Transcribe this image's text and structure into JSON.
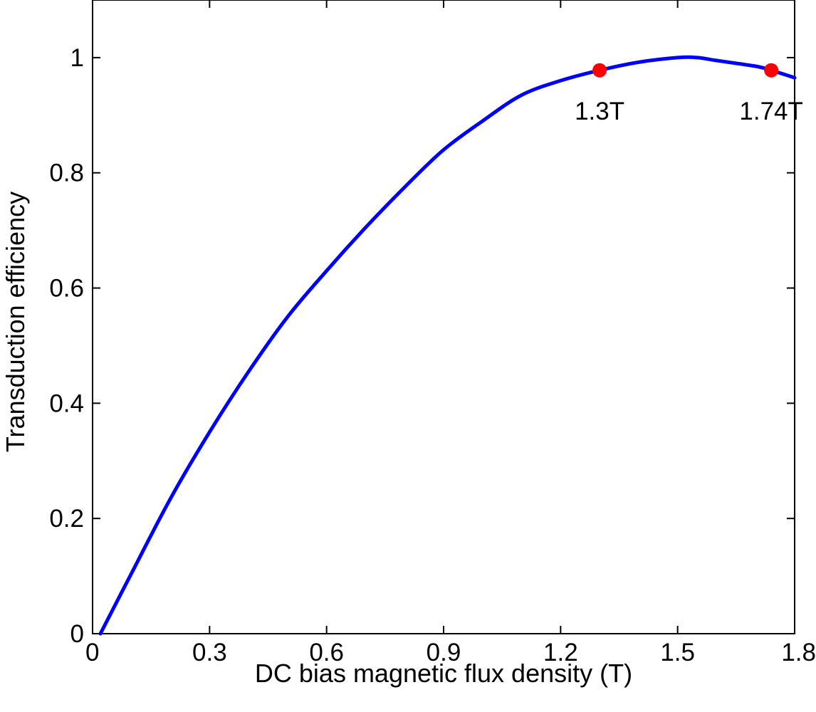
{
  "chart_data": {
    "type": "line",
    "title": "",
    "xlabel": "DC bias magnetic flux density (T)",
    "ylabel": "Transduction efficiency",
    "xlim": [
      0,
      1.8
    ],
    "ylim": [
      0,
      1.1
    ],
    "xticks": [
      "0",
      "0.3",
      "0.6",
      "0.9",
      "1.2",
      "1.5",
      "1.8"
    ],
    "yticks": [
      "0",
      "0.2",
      "0.4",
      "0.6",
      "0.8",
      "1"
    ],
    "grid": false,
    "legend": "none",
    "series": [
      {
        "color": "#0000ff",
        "x": [
          0.02,
          0.1,
          0.2,
          0.3,
          0.4,
          0.5,
          0.6,
          0.7,
          0.8,
          0.9,
          1.0,
          1.1,
          1.2,
          1.3,
          1.4,
          1.5,
          1.55,
          1.6,
          1.7,
          1.74,
          1.8
        ],
        "y": [
          0,
          0.105,
          0.235,
          0.35,
          0.455,
          0.55,
          0.63,
          0.705,
          0.775,
          0.84,
          0.89,
          0.935,
          0.96,
          0.978,
          0.992,
          1.0,
          1.0,
          0.995,
          0.985,
          0.978,
          0.965
        ]
      }
    ],
    "markers": [
      {
        "x": 1.3,
        "y": 0.978,
        "label": "1.3T",
        "color": "#ff0000"
      },
      {
        "x": 1.74,
        "y": 0.978,
        "label": "1.74T",
        "color": "#ff0000"
      }
    ]
  }
}
